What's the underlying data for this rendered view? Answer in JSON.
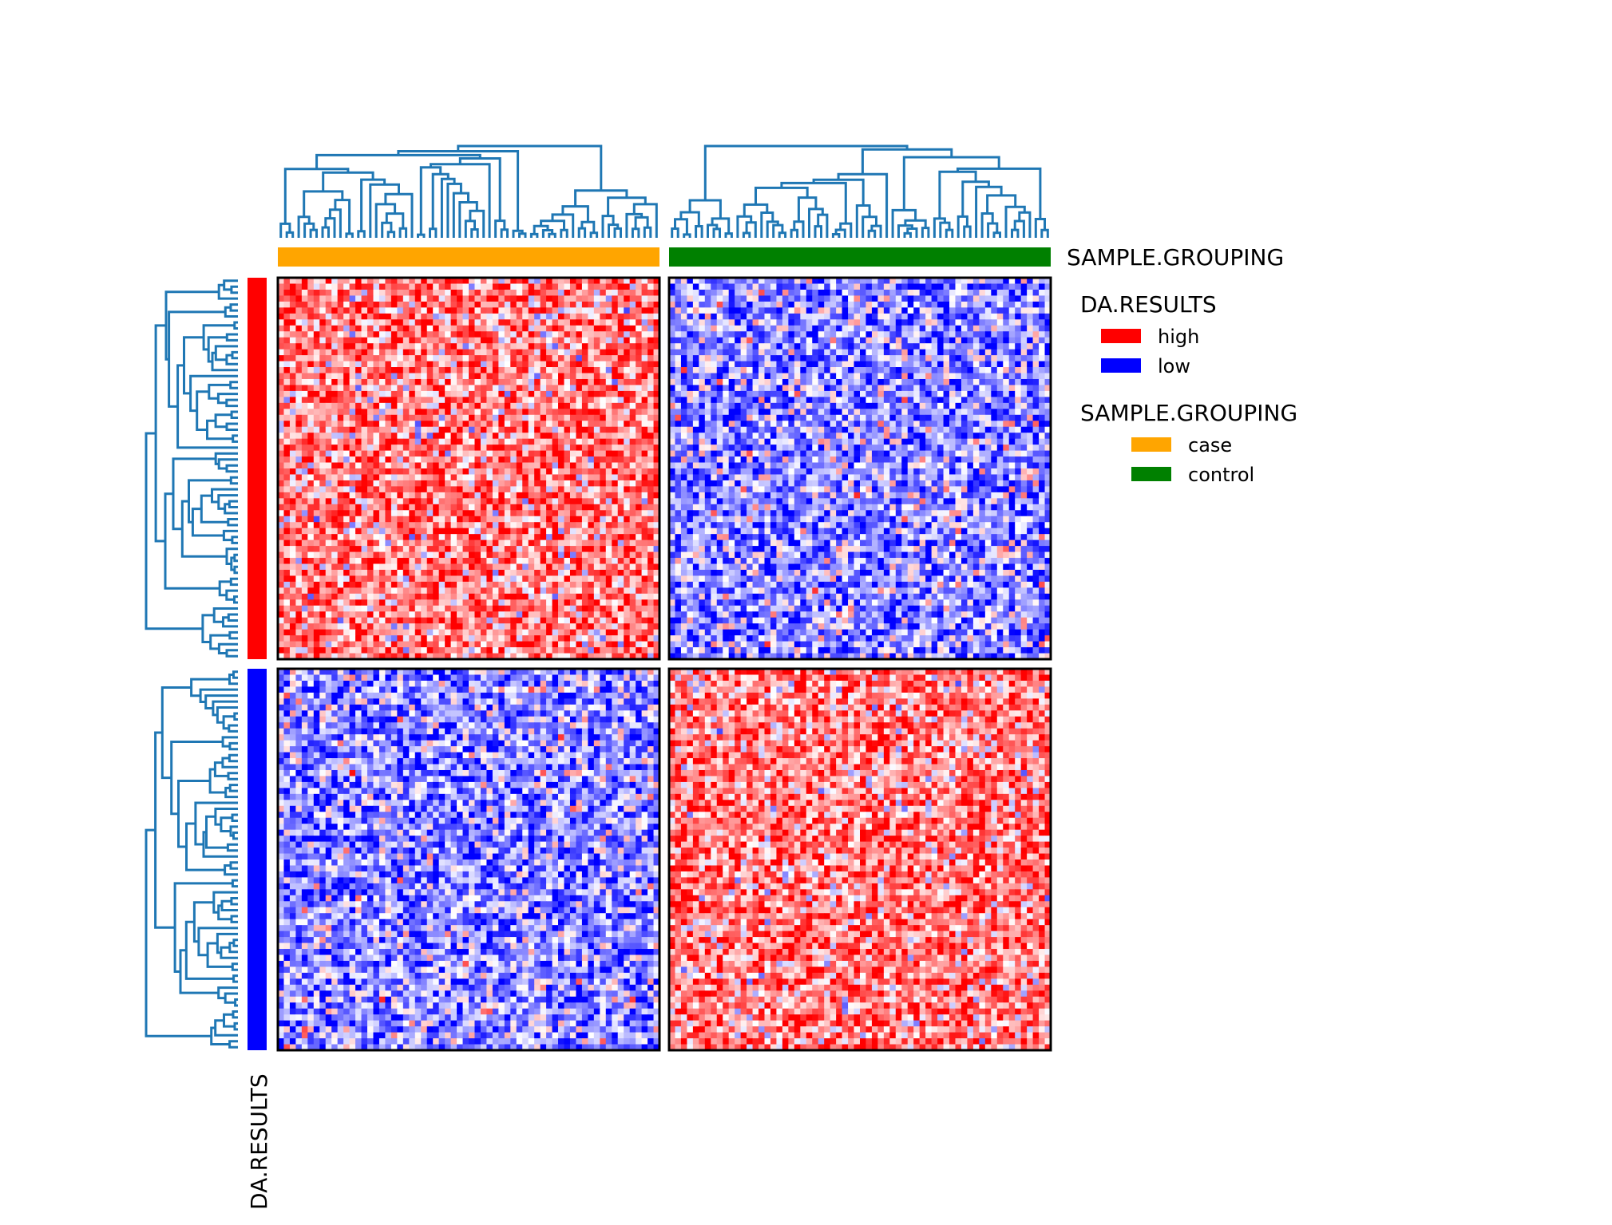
{
  "chart_data": {
    "type": "heatmap",
    "title": "",
    "rows_per_group": 64,
    "cols_per_group": 64,
    "column_groups": [
      "case",
      "control"
    ],
    "row_groups": [
      "high",
      "low"
    ],
    "color_scale": {
      "low": "#0000ff",
      "mid": "#ffffff",
      "high": "#ff0000"
    },
    "block_pattern": [
      {
        "row_group": "high",
        "col_group": "case",
        "tendency": "high"
      },
      {
        "row_group": "high",
        "col_group": "control",
        "tendency": "low"
      },
      {
        "row_group": "low",
        "col_group": "case",
        "tendency": "low"
      },
      {
        "row_group": "low",
        "col_group": "control",
        "tendency": "high"
      }
    ],
    "column_annotation": {
      "title": "SAMPLE.GROUPING",
      "levels": [
        {
          "label": "case",
          "color": "#ffa500"
        },
        {
          "label": "control",
          "color": "#008000"
        }
      ]
    },
    "row_annotation": {
      "title": "DA.RESULTS",
      "levels": [
        {
          "label": "high",
          "color": "#ff0000"
        },
        {
          "label": "low",
          "color": "#0000ff"
        }
      ]
    },
    "dendrogram_color": "#1f77b4",
    "legends": [
      {
        "title": "DA.RESULTS",
        "items": [
          {
            "label": "high",
            "color": "#ff0000"
          },
          {
            "label": "low",
            "color": "#0000ff"
          }
        ]
      },
      {
        "title": "SAMPLE.GROUPING",
        "items": [
          {
            "label": "case",
            "color": "#ffa500"
          },
          {
            "label": "control",
            "color": "#008000"
          }
        ]
      }
    ]
  }
}
